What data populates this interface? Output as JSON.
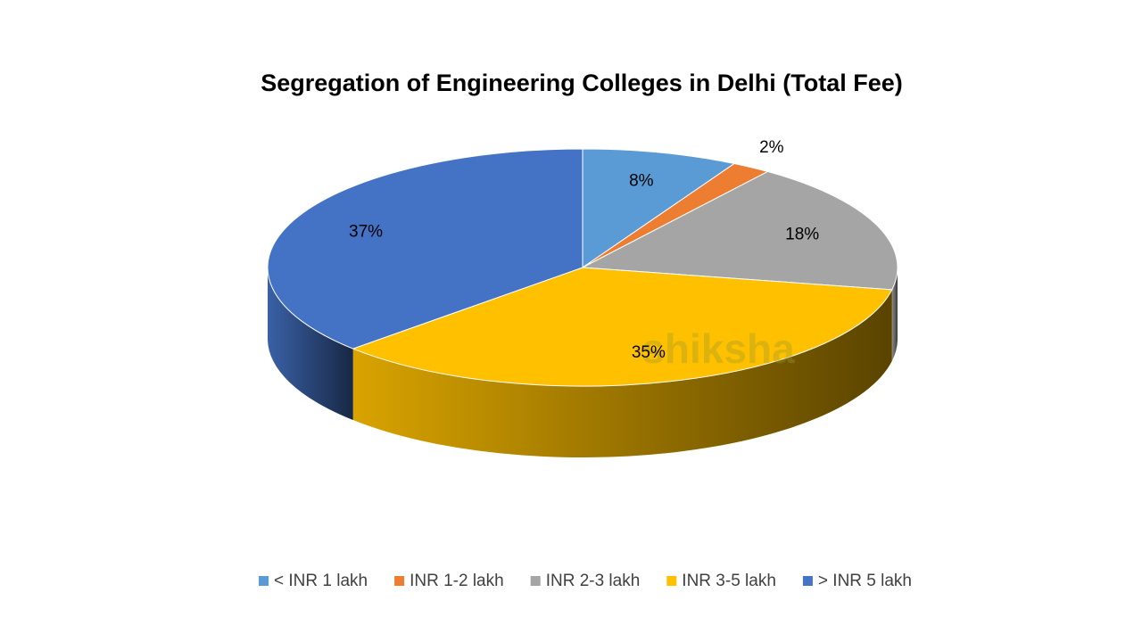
{
  "chart_data": {
    "type": "pie",
    "title": "Segregation of Engineering Colleges in Delhi (Total Fee)",
    "categories": [
      "< INR 1 lakh",
      "INR 1-2 lakh",
      "INR 2-3 lakh",
      "INR 3-5 lakh",
      "> INR 5 lakh"
    ],
    "values": [
      8,
      2,
      18,
      35,
      37
    ],
    "value_labels": [
      "8%",
      "2%",
      "18%",
      "35%",
      "37%"
    ],
    "colors": [
      "#5b9bd5",
      "#ed7d31",
      "#a5a5a5",
      "#ffc000",
      "#4472c4"
    ],
    "legend": "bottom",
    "watermark": "shiksha"
  }
}
